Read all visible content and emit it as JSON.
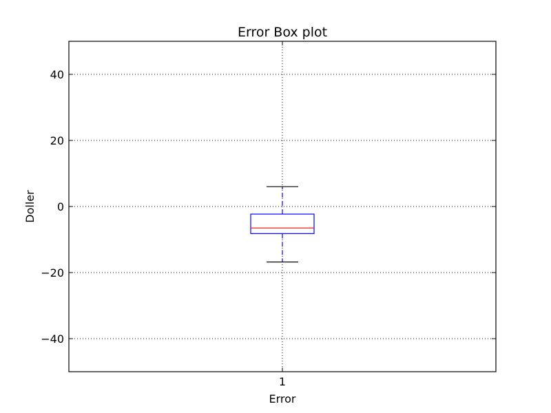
{
  "chart_data": {
    "type": "box",
    "title": "Error Box plot",
    "xlabel": "Error",
    "ylabel": "Doller",
    "ylim": [
      -50,
      50
    ],
    "yticks": [
      -40,
      -20,
      0,
      20,
      40
    ],
    "ytick_labels": [
      "−40",
      "−20",
      "0",
      "20",
      "40"
    ],
    "categories": [
      "1"
    ],
    "boxes": [
      {
        "category": "1",
        "whisker_low": -16.8,
        "q1": -8.2,
        "median": -6.5,
        "q3": -2.3,
        "whisker_high": 6.0
      }
    ],
    "grid": true,
    "colors": {
      "box": "#0000ff",
      "median": "#ff0000",
      "whisker": "#0000ff",
      "cap": "#000000"
    }
  }
}
